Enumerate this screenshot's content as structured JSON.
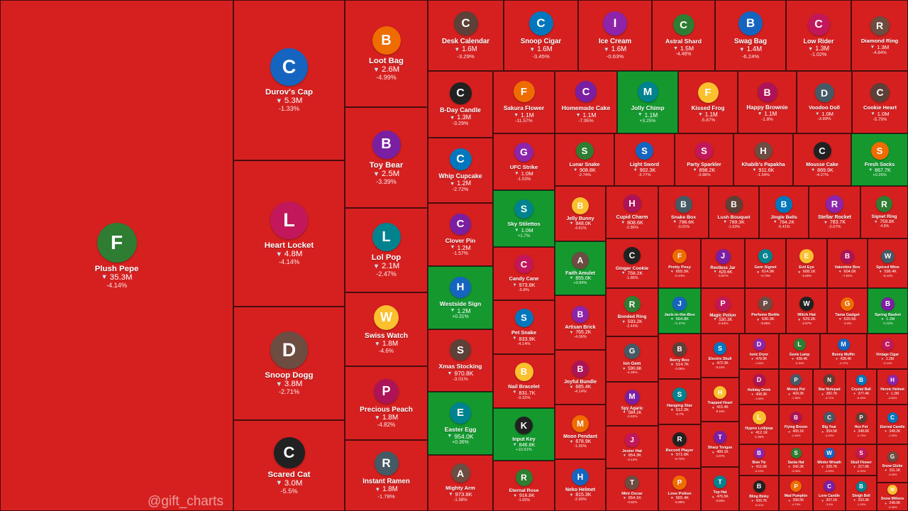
{
  "colors": {
    "down": "#d62020",
    "up": "#15992f"
  },
  "watermark": "@gift_charts",
  "chart_data": {
    "type": "treemap",
    "items": [
      {
        "name": "Plush Pepe",
        "price": "35.3M",
        "change": "-4.14%",
        "icon": "frog-icon",
        "up": false
      },
      {
        "name": "Durov's Cap",
        "price": "5.3M",
        "change": "-1.33%",
        "icon": "cap-icon",
        "up": false
      },
      {
        "name": "Heart Locket",
        "price": "4.8M",
        "change": "-4.14%",
        "icon": "locket-icon",
        "up": false
      },
      {
        "name": "Snoop Dogg",
        "price": "3.8M",
        "change": "-2.71%",
        "icon": "dog-icon",
        "up": false
      },
      {
        "name": "Scared Cat",
        "price": "3.0M",
        "change": "-5.5%",
        "icon": "cat-icon",
        "up": false
      },
      {
        "name": "Loot Bag",
        "price": "2.6M",
        "change": "-4.99%",
        "icon": "bag-icon",
        "up": false
      },
      {
        "name": "Toy Bear",
        "price": "2.5M",
        "change": "-3.39%",
        "icon": "bear-icon",
        "up": false
      },
      {
        "name": "Lol Pop",
        "price": "2.1M",
        "change": "-2.47%",
        "icon": "lollipop-icon",
        "up": false
      },
      {
        "name": "Swiss Watch",
        "price": "1.8M",
        "change": "-4.6%",
        "icon": "watch-icon",
        "up": false
      },
      {
        "name": "Precious Peach",
        "price": "1.8M",
        "change": "-4.82%",
        "icon": "peach-icon",
        "up": false
      },
      {
        "name": "Instant Ramen",
        "price": "1.8M",
        "change": "-1.78%",
        "icon": "ramen-icon",
        "up": false
      },
      {
        "name": "Desk Calendar",
        "price": "1.6M",
        "change": "-3.29%",
        "icon": "calendar-icon",
        "up": false
      },
      {
        "name": "Snoop Cigar",
        "price": "1.6M",
        "change": "-3.45%",
        "icon": "cigar-icon",
        "up": false
      },
      {
        "name": "Ice Cream",
        "price": "1.6M",
        "change": "-0.63%",
        "icon": "ice-cream-icon",
        "up": false
      },
      {
        "name": "Astral Shard",
        "price": "1.5M",
        "change": "-4.46%",
        "icon": "crystal-icon",
        "up": false
      },
      {
        "name": "Swag Bag",
        "price": "1.4M",
        "change": "-6.24%",
        "icon": "bag-icon",
        "up": false
      },
      {
        "name": "Low Rider",
        "price": "1.3M",
        "change": "-1.02%",
        "icon": "car-icon",
        "up": false
      },
      {
        "name": "Diamond Ring",
        "price": "1.3M",
        "change": "-4.84%",
        "icon": "ring-icon",
        "up": false
      },
      {
        "name": "B-Day Candle",
        "price": "1.3M",
        "change": "-3.29%",
        "icon": "candle-icon",
        "up": false
      },
      {
        "name": "Sakura Flower",
        "price": "1.1M",
        "change": "-11.57%",
        "icon": "flower-icon",
        "up": false
      },
      {
        "name": "Homemade Cake",
        "price": "1.1M",
        "change": "-7.95%",
        "icon": "cake-icon",
        "up": false
      },
      {
        "name": "Jolly Chimp",
        "price": "1.1M",
        "change": "+3.25%",
        "icon": "monkey-icon",
        "up": true
      },
      {
        "name": "Kissed Frog",
        "price": "1.1M",
        "change": "-5.87%",
        "icon": "frog-icon",
        "up": false
      },
      {
        "name": "Happy Brownie",
        "price": "1.1M",
        "change": "-1.8%",
        "icon": "brownie-icon",
        "up": false
      },
      {
        "name": "Voodoo Doll",
        "price": "1.0M",
        "change": "-3.89%",
        "icon": "doll-icon",
        "up": false
      },
      {
        "name": "Cookie Heart",
        "price": "1.0M",
        "change": "-5.79%",
        "icon": "cookie-icon",
        "up": false
      },
      {
        "name": "Whip Cupcake",
        "price": "1.2M",
        "change": "-2.72%",
        "icon": "cupcake-icon",
        "up": false
      },
      {
        "name": "UFC Strike",
        "price": "1.0M",
        "change": "-1.03%",
        "icon": "glove-icon",
        "up": false
      },
      {
        "name": "Lunar Snake",
        "price": "908.8K",
        "change": "-2.74%",
        "icon": "snake-icon",
        "up": false
      },
      {
        "name": "Light Sword",
        "price": "902.3K",
        "change": "-3.77%",
        "icon": "sword-icon",
        "up": false
      },
      {
        "name": "Party Sparkler",
        "price": "898.2K",
        "change": "-3.88%",
        "icon": "sparkler-icon",
        "up": false
      },
      {
        "name": "Khabib's Papakha",
        "price": "911.6K",
        "change": "-1.54%",
        "icon": "hat-icon",
        "up": false
      },
      {
        "name": "Mousse Cake",
        "price": "869.9K",
        "change": "-4.27%",
        "icon": "cake-icon",
        "up": false
      },
      {
        "name": "Fresh Socks",
        "price": "867.7K",
        "change": "+0.25%",
        "icon": "socks-icon",
        "up": true
      },
      {
        "name": "Clover Pin",
        "price": "1.2M",
        "change": "-1.57%",
        "icon": "clover-icon",
        "up": false
      },
      {
        "name": "Sky Stilettos",
        "price": "1.0M",
        "change": "+1.7%",
        "icon": "shoe-icon",
        "up": true
      },
      {
        "name": "Jelly Bunny",
        "price": "848.0K",
        "change": "-4.61%",
        "icon": "bunny-icon",
        "up": false
      },
      {
        "name": "Cupid Charm",
        "price": "808.6K",
        "change": "-2.86%",
        "icon": "heart-icon",
        "up": false
      },
      {
        "name": "Snake Box",
        "price": "796.6K",
        "change": "-3.01%",
        "icon": "box-icon",
        "up": false
      },
      {
        "name": "Lush Bouquet",
        "price": "789.3K",
        "change": "-1.63%",
        "icon": "bouquet-icon",
        "up": false
      },
      {
        "name": "Jingle Bells",
        "price": "784.2K",
        "change": "-5.41%",
        "icon": "bell-icon",
        "up": false
      },
      {
        "name": "Stellar Rocket",
        "price": "783.7K",
        "change": "-2.07%",
        "icon": "rocket-icon",
        "up": false
      },
      {
        "name": "Signet Ring",
        "price": "759.8K",
        "change": "-4.8%",
        "icon": "ring-icon",
        "up": false
      },
      {
        "name": "Westside Sign",
        "price": "1.2M",
        "change": "+0.31%",
        "icon": "hand-icon",
        "up": true
      },
      {
        "name": "Candy Cane",
        "price": "973.8K",
        "change": "-5.8%",
        "icon": "candy-cane-icon",
        "up": false
      },
      {
        "name": "Faith Amulet",
        "price": "855.0K",
        "change": "+0.84%",
        "icon": "amulet-icon",
        "up": true
      },
      {
        "name": "Ginger Cookie",
        "price": "758.2K",
        "change": "-1.86%",
        "icon": "cookie-icon",
        "up": false
      },
      {
        "name": "Pretty Posy",
        "price": "655.5K",
        "change": "-0.13%",
        "icon": "flower-icon",
        "up": false
      },
      {
        "name": "Restless Jar",
        "price": "629.6K",
        "change": "-3.87%",
        "icon": "jar-icon",
        "up": false
      },
      {
        "name": "Gem Signet",
        "price": "614.9K",
        "change": "-0.73%",
        "icon": "gem-icon",
        "up": false
      },
      {
        "name": "Evil Eye",
        "price": "608.1K",
        "change": "-2.66%",
        "icon": "eye-icon",
        "up": false
      },
      {
        "name": "Valentine Box",
        "price": "604.0K",
        "change": "-7.81%",
        "icon": "box-icon",
        "up": false
      },
      {
        "name": "Spiced Wine",
        "price": "596.4K",
        "change": "-5.14%",
        "icon": "wine-icon",
        "up": false
      },
      {
        "name": "Xmas Stocking",
        "price": "970.8K",
        "change": "-3.01%",
        "icon": "stocking-icon",
        "up": false
      },
      {
        "name": "Pet Snake",
        "price": "833.9K",
        "change": "-4.14%",
        "icon": "snake-icon",
        "up": false
      },
      {
        "name": "Artisan Brick",
        "price": "765.2K",
        "change": "-4.06%",
        "icon": "brick-icon",
        "up": false
      },
      {
        "name": "Bonded Ring",
        "price": "593.2K",
        "change": "-2.44%",
        "icon": "ring-icon",
        "up": false
      },
      {
        "name": "Jack-in-the-Box",
        "price": "564.8K",
        "change": "+1.37%",
        "icon": "jack-box-icon",
        "up": true
      },
      {
        "name": "Magic Potion",
        "price": "530.3K",
        "change": "-3.44%",
        "icon": "potion-icon",
        "up": false
      },
      {
        "name": "Perfume Bottle",
        "price": "530.3K",
        "change": "-9.86%",
        "icon": "perfume-icon",
        "up": false
      },
      {
        "name": "Witch Hat",
        "price": "529.2K",
        "change": "-2.67%",
        "icon": "witch-hat-icon",
        "up": false
      },
      {
        "name": "Tama Gadget",
        "price": "520.5K",
        "change": "-4.4%",
        "icon": "gadget-icon",
        "up": false
      },
      {
        "name": "Spring Basket",
        "price": "1.2M",
        "change": "+1.53%",
        "icon": "basket-icon",
        "up": true
      },
      {
        "name": "Easter Egg",
        "price": "954.0K",
        "change": "+0.36%",
        "icon": "egg-icon",
        "up": true
      },
      {
        "name": "Nail Bracelet",
        "price": "831.7K",
        "change": "-3.32%",
        "icon": "bracelet-icon",
        "up": false
      },
      {
        "name": "Joyful Bundle",
        "price": "685.4K",
        "change": "-4.14%",
        "icon": "bundle-icon",
        "up": false
      },
      {
        "name": "Ion Gem",
        "price": "590.6K",
        "change": "-4.39%",
        "icon": "gem-icon",
        "up": false
      },
      {
        "name": "Berry Box",
        "price": "514.7K",
        "change": "-3.05%",
        "icon": "box-icon",
        "up": false
      },
      {
        "name": "Electric Skull",
        "price": "472.3K",
        "change": "-5.24%",
        "icon": "skull-icon",
        "up": false
      },
      {
        "name": "Ionic Dryer",
        "price": "478.9K",
        "change": "-1.64%",
        "icon": "dryer-icon",
        "up": false
      },
      {
        "name": "Genie Lamp",
        "price": "438.4K",
        "change": "-9.39%",
        "icon": "lamp-icon",
        "up": false
      },
      {
        "name": "Bunny Muffin",
        "price": "428.4K",
        "change": "-2.27%",
        "icon": "muffin-icon",
        "up": false
      },
      {
        "name": "Vintage Cigar",
        "price": "1.2M",
        "change": "-3.14%",
        "icon": "cigar-icon",
        "up": false
      },
      {
        "name": "Mighty Arm",
        "price": "973.8K",
        "change": "-1.58%",
        "icon": "arm-icon",
        "up": false
      },
      {
        "name": "Input Key",
        "price": "846.8K",
        "change": "+10.91%",
        "icon": "key-icon",
        "up": true
      },
      {
        "name": "Moon Pendant",
        "price": "678.9K",
        "change": "-1.65%",
        "icon": "moon-icon",
        "up": false
      },
      {
        "name": "Spy Agaric",
        "price": "584.1K",
        "change": "-2.53%",
        "icon": "mushroom-icon",
        "up": false
      },
      {
        "name": "Hanging Star",
        "price": "512.2K",
        "change": "-0.7%",
        "icon": "star-icon",
        "up": false
      },
      {
        "name": "Trapped Heart",
        "price": "415.4K",
        "change": "-8.16%",
        "icon": "heart-icon",
        "up": false
      },
      {
        "name": "Holiday Drink",
        "price": "408.3K",
        "change": "-1.68%",
        "icon": "drink-icon",
        "up": false
      },
      {
        "name": "Money Pot",
        "price": "404.2K",
        "change": "-1.38%",
        "icon": "pot-icon",
        "up": false
      },
      {
        "name": "Star Notepad",
        "price": "382.7K",
        "change": "-4.71%",
        "icon": "notepad-icon",
        "up": false
      },
      {
        "name": "Crystal Ball",
        "price": "377.4K",
        "change": "-6.45%",
        "icon": "ball-icon",
        "up": false
      },
      {
        "name": "Heroic Helmet",
        "price": "1.2M",
        "change": "-4.84%",
        "icon": "helmet-icon",
        "up": false
      },
      {
        "name": "Eternal Rose",
        "price": "916.8K",
        "change": "-1.65%",
        "icon": "rose-icon",
        "up": false
      },
      {
        "name": "Neko Helmet",
        "price": "815.3K",
        "change": "-2.99%",
        "icon": "helmet-icon",
        "up": false
      },
      {
        "name": "Jester Hat",
        "price": "654.3K",
        "change": "-4.14%",
        "icon": "jester-hat-icon",
        "up": false
      },
      {
        "name": "Mini Oscar",
        "price": "654.1K",
        "change": "-3.82%",
        "icon": "trophy-icon",
        "up": false
      },
      {
        "name": "Record Player",
        "price": "571.6K",
        "change": "-5.72%",
        "icon": "record-icon",
        "up": false
      },
      {
        "name": "Love Potion",
        "price": "565.4K",
        "change": "-5.88%",
        "icon": "potion-icon",
        "up": false
      },
      {
        "name": "Sharp Tongue",
        "price": "489.1K",
        "change": "-4.07%",
        "icon": "tongue-icon",
        "up": false
      },
      {
        "name": "Top Hat",
        "price": "476.5K",
        "change": "-0.68%",
        "icon": "top-hat-icon",
        "up": false
      },
      {
        "name": "Hypno Lollipop",
        "price": "412.1K",
        "change": "-1.36%",
        "icon": "lollipop-icon",
        "up": false
      },
      {
        "name": "Flying Broom",
        "price": "405.1K",
        "change": "-2.46%",
        "icon": "broom-icon",
        "up": false
      },
      {
        "name": "Big Year",
        "price": "354.5K",
        "change": "-4.15%",
        "icon": "calendar-icon",
        "up": false
      },
      {
        "name": "Hex Pot",
        "price": "348.6K",
        "change": "-3.74%",
        "icon": "pot-icon",
        "up": false
      },
      {
        "name": "Eternal Candle",
        "price": "348.2K",
        "change": "-1.33%",
        "icon": "candle-icon",
        "up": false
      },
      {
        "name": "Bow Tie",
        "price": "411.6K",
        "change": "-0.14%",
        "icon": "bow-tie-icon",
        "up": false
      },
      {
        "name": "Santa Hat",
        "price": "342.3K",
        "change": "-3.08%",
        "icon": "santa-hat-icon",
        "up": false
      },
      {
        "name": "Winter Wreath",
        "price": "339.7K",
        "change": "-4.09%",
        "icon": "wreath-icon",
        "up": false
      },
      {
        "name": "Skull Flower",
        "price": "317.6K",
        "change": "-4.32%",
        "icon": "skull-icon",
        "up": false
      },
      {
        "name": "Snow Globe",
        "price": "311.1K",
        "change": "-3.08%",
        "icon": "globe-icon",
        "up": false
      },
      {
        "name": "Bling Binky",
        "price": "420.7K",
        "change": "-3.01%",
        "icon": "binky-icon",
        "up": false
      },
      {
        "name": "Mad Pumpkin",
        "price": "358.5K",
        "change": "-4.75%",
        "icon": "pumpkin-icon",
        "up": false
      },
      {
        "name": "Love Candle",
        "price": "307.1K",
        "change": "-3.4%",
        "icon": "candle-icon",
        "up": false
      },
      {
        "name": "Sleigh Bell",
        "price": "263.3K",
        "change": "-1.15%",
        "icon": "bell-icon",
        "up": false
      },
      {
        "name": "Snow Mittens",
        "price": "248.0K",
        "change": "-3.08%",
        "icon": "mittens-icon",
        "up": false
      }
    ]
  }
}
